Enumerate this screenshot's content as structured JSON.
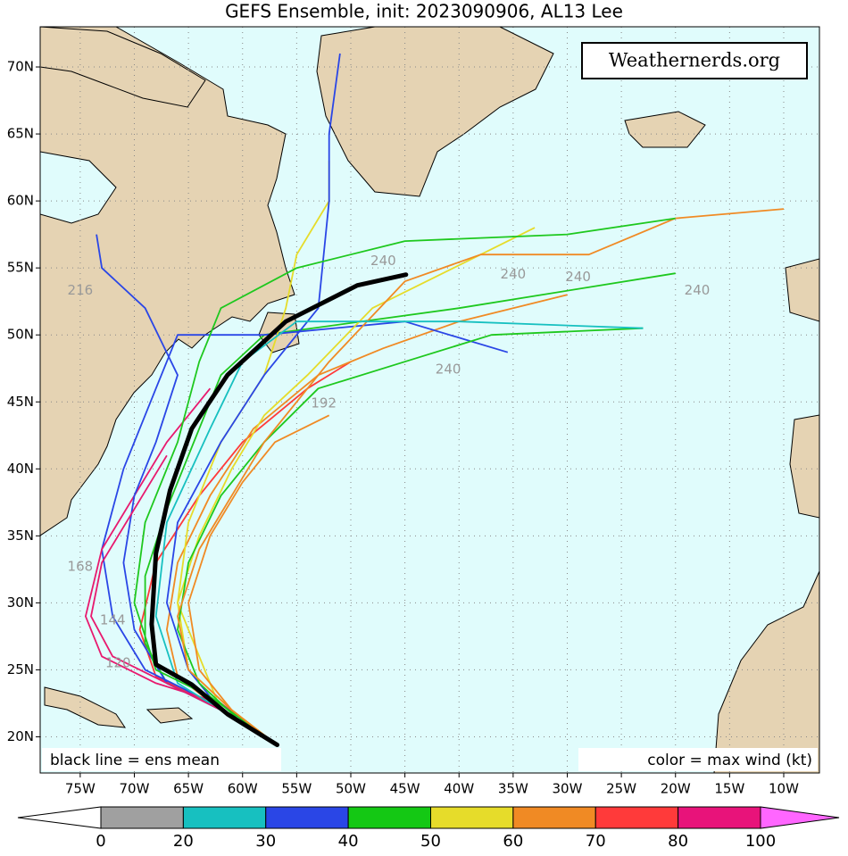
{
  "chart_data": {
    "type": "track-map",
    "title": "GEFS Ensemble, init: 2023090906, AL13 Lee",
    "watermark": "Weathernerds.org",
    "legend_left": "black line = ens mean",
    "legend_right": "color = max wind (kt)",
    "xlim": [
      -78.7,
      -6.7
    ],
    "ylim": [
      17.3,
      73
    ],
    "xticks": [
      {
        "value": -75,
        "label": "75W"
      },
      {
        "value": -70,
        "label": "70W"
      },
      {
        "value": -65,
        "label": "65W"
      },
      {
        "value": -60,
        "label": "60W"
      },
      {
        "value": -55,
        "label": "55W"
      },
      {
        "value": -50,
        "label": "50W"
      },
      {
        "value": -45,
        "label": "45W"
      },
      {
        "value": -40,
        "label": "40W"
      },
      {
        "value": -35,
        "label": "35W"
      },
      {
        "value": -30,
        "label": "30W"
      },
      {
        "value": -25,
        "label": "25W"
      },
      {
        "value": -20,
        "label": "20W"
      },
      {
        "value": -15,
        "label": "15W"
      },
      {
        "value": -10,
        "label": "10W"
      }
    ],
    "yticks": [
      {
        "value": 20,
        "label": "20N"
      },
      {
        "value": 25,
        "label": "25N"
      },
      {
        "value": 30,
        "label": "30N"
      },
      {
        "value": 35,
        "label": "35N"
      },
      {
        "value": 40,
        "label": "40N"
      },
      {
        "value": 45,
        "label": "45N"
      },
      {
        "value": 50,
        "label": "50N"
      },
      {
        "value": 55,
        "label": "55N"
      },
      {
        "value": 60,
        "label": "60N"
      },
      {
        "value": 65,
        "label": "65N"
      },
      {
        "value": 70,
        "label": "70N"
      }
    ],
    "grid": true,
    "mean": {
      "color": "#000000",
      "x": [
        -56.8,
        -61.4,
        -64.7,
        -68,
        -68.4,
        -68,
        -66.7,
        -64.7,
        -61.4,
        -56,
        -49.4,
        -44.9
      ],
      "y": [
        19.4,
        21.7,
        23.9,
        25.4,
        28.4,
        33.7,
        38.4,
        43,
        47,
        51,
        53.7,
        54.5
      ]
    },
    "series": [
      {
        "color": "#ff3a3a",
        "x": [
          -57,
          -63,
          -68,
          -69.5,
          -68,
          -64,
          -60,
          -57,
          -54,
          -50
        ],
        "y": [
          19.5,
          22.5,
          24.5,
          28,
          33,
          38,
          42,
          44,
          46,
          48
        ]
      },
      {
        "color": "#f08a24",
        "x": [
          -57,
          -62,
          -66,
          -67,
          -66,
          -63,
          -59,
          -53,
          -47,
          -40,
          -30
        ],
        "y": [
          19.5,
          22,
          24.5,
          28,
          33,
          38,
          43,
          47,
          49,
          51,
          53
        ]
      },
      {
        "color": "#1ec81e",
        "x": [
          -57,
          -62,
          -67,
          -69,
          -69,
          -67,
          -64,
          -62,
          -58,
          -40,
          -20
        ],
        "y": [
          19.5,
          22,
          24,
          27,
          32,
          37,
          43,
          47,
          50,
          52,
          54.6
        ]
      },
      {
        "color": "#2a46e6",
        "x": [
          -57,
          -64,
          -69,
          -72,
          -73,
          -71,
          -68,
          -66,
          -58,
          -45,
          -35.5
        ],
        "y": [
          19.5,
          23,
          25,
          29,
          34,
          40,
          46,
          50,
          50,
          51,
          48.7
        ]
      },
      {
        "color": "#e6dc2a",
        "x": [
          -57,
          -61,
          -65,
          -66,
          -64,
          -61,
          -58,
          -54,
          -48,
          -38,
          -33
        ],
        "y": [
          19.5,
          22,
          25,
          30,
          35,
          40,
          44,
          47,
          52,
          56,
          58
        ]
      },
      {
        "color": "#e8196e",
        "x": [
          -57,
          -62,
          -68,
          -73,
          -74.5,
          -73,
          -70,
          -67,
          -63
        ],
        "y": [
          19.5,
          22.5,
          24,
          26,
          29,
          34,
          38,
          42,
          46
        ]
      },
      {
        "color": "#2a46e6",
        "x": [
          -57,
          -62,
          -67,
          -70,
          -71,
          -70,
          -68,
          -66,
          -69,
          -73,
          -73.5
        ],
        "y": [
          19.5,
          22,
          24,
          28,
          33,
          38,
          42,
          47,
          52,
          55,
          57.5
        ]
      },
      {
        "color": "#e6dc2a",
        "x": [
          -57,
          -62,
          -66,
          -65,
          -62,
          -58,
          -56,
          -55,
          -52,
          -52
        ],
        "y": [
          19.5,
          22,
          30,
          36,
          42,
          47,
          52,
          56,
          60,
          63
        ]
      },
      {
        "color": "#2a46e6",
        "x": [
          -57,
          -62,
          -65,
          -67,
          -66,
          -62,
          -58,
          -53,
          -52,
          -52,
          -51
        ],
        "y": [
          19.5,
          22,
          25,
          30,
          36,
          42,
          47,
          52,
          60,
          65,
          71
        ]
      },
      {
        "color": "#1ec81e",
        "x": [
          -57,
          -60,
          -64,
          -66,
          -65,
          -62,
          -58,
          -53,
          -45,
          -37,
          -23
        ],
        "y": [
          19.5,
          21,
          24,
          28,
          33,
          38,
          42,
          46,
          48,
          50,
          50.5
        ]
      },
      {
        "color": "#f08a24",
        "x": [
          -57,
          -61,
          -65,
          -66,
          -64,
          -61,
          -58,
          -52,
          -45,
          -38,
          -28,
          -20,
          -10
        ],
        "y": [
          19.5,
          22,
          25,
          29,
          34,
          38,
          42,
          48,
          54,
          56,
          56,
          58.7,
          59.4
        ]
      },
      {
        "color": "#17c0c0",
        "x": [
          -57,
          -62,
          -66,
          -68,
          -67,
          -63,
          -60,
          -55,
          -40,
          -23
        ],
        "y": [
          19.5,
          22,
          24,
          29,
          36,
          43,
          48,
          51,
          51,
          50.5
        ]
      },
      {
        "color": "#1ec81e",
        "x": [
          -57,
          -63,
          -68,
          -70,
          -69,
          -66,
          -64,
          -62,
          -55,
          -45,
          -30,
          -20
        ],
        "y": [
          19.5,
          23,
          25,
          30,
          36,
          42,
          48,
          52,
          55,
          57,
          57.5,
          58.7
        ]
      },
      {
        "color": "#e8196e",
        "x": [
          -57,
          -62,
          -67,
          -72,
          -74,
          -73,
          -70,
          -67
        ],
        "y": [
          19.5,
          22,
          24,
          26,
          29,
          33,
          37,
          41
        ]
      },
      {
        "color": "#f08a24",
        "x": [
          -57,
          -61,
          -64,
          -65,
          -63,
          -60,
          -57,
          -52
        ],
        "y": [
          19.5,
          22,
          25,
          30,
          35,
          39,
          42,
          44
        ]
      }
    ],
    "hour_labels": [
      {
        "text": "240",
        "x": -47,
        "y": 55.5
      },
      {
        "text": "240",
        "x": -35,
        "y": 54.5
      },
      {
        "text": "240",
        "x": -29,
        "y": 54.3
      },
      {
        "text": "240",
        "x": -18,
        "y": 53.3
      },
      {
        "text": "240",
        "x": -41,
        "y": 47.4
      },
      {
        "text": "216",
        "x": -75,
        "y": 53.3
      },
      {
        "text": "192",
        "x": -52.5,
        "y": 44.9
      },
      {
        "text": "168",
        "x": -75,
        "y": 32.7
      },
      {
        "text": "144",
        "x": -72,
        "y": 28.7
      },
      {
        "text": "120",
        "x": -71.5,
        "y": 25.5
      }
    ],
    "colorbar": {
      "ticks": [
        0,
        20,
        30,
        40,
        50,
        60,
        70,
        80,
        100
      ],
      "colors": [
        "#a0a0a0",
        "#17c0c0",
        "#2a46e6",
        "#14c814",
        "#e6dc2a",
        "#f08a24",
        "#ff3a3a",
        "#e8137a"
      ],
      "under_color": "#ffffff",
      "over_color": "#ff66ff"
    }
  }
}
